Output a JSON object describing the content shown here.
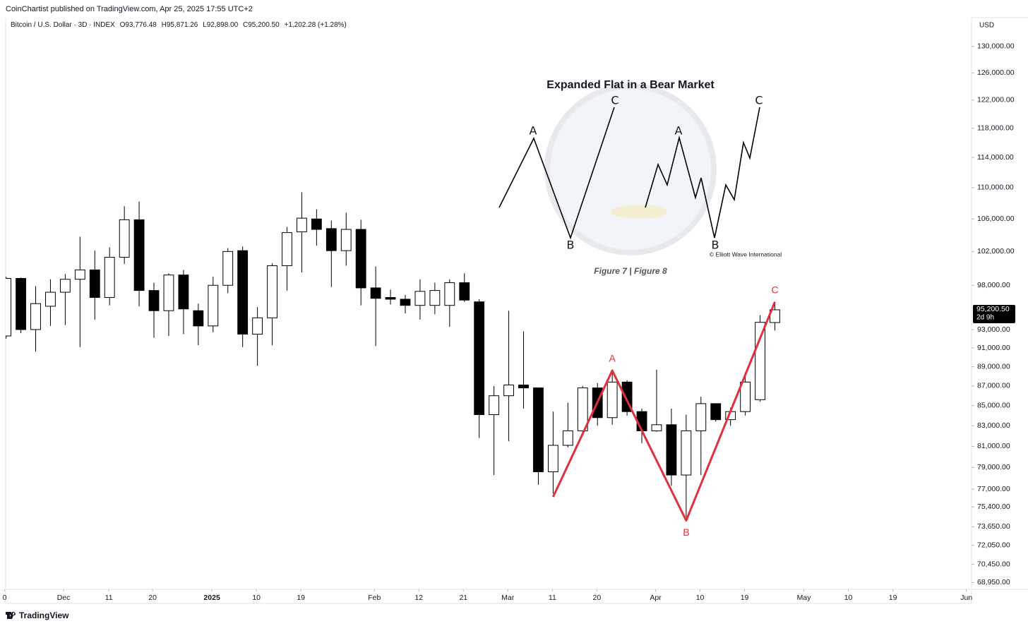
{
  "header": {
    "publisher": "CoinChartist published on TradingView.com, Apr 25, 2025 17:55 UTC+2",
    "symbol": "Bitcoin / U.S. Dollar · 3D · INDEX",
    "ohlc_labels": [
      "O93,776.48",
      "H95,871.26",
      "L92,898.00",
      "C95,200.50"
    ],
    "change_label": "+1,202.28 (+1.28%)",
    "currency": "USD"
  },
  "chart_data": {
    "type": "candlestick",
    "log_scale": true,
    "up_color": "#ffffff",
    "down_color": "#000000",
    "wick_color": "#000000",
    "open": [
      92300,
      98800,
      93000,
      95600,
      97200,
      98700,
      99800,
      96600,
      101300,
      105900,
      97400,
      95100,
      99200,
      95100,
      93400,
      98000,
      102100,
      92500,
      94300,
      100300,
      104400,
      106000,
      104800,
      102100,
      104700,
      97700,
      96600,
      96400,
      95700,
      95700,
      95700,
      98300,
      96100,
      84100,
      86000,
      87100,
      86800,
      78600,
      81100,
      82500,
      86800,
      83800,
      87400,
      84400,
      82500,
      83100,
      78300,
      82500,
      85200,
      83600,
      84400,
      85600,
      93776.48
    ],
    "high": [
      99000,
      98900,
      97900,
      98700,
      99300,
      103800,
      102100,
      102500,
      107600,
      108200,
      98300,
      99400,
      99800,
      95900,
      99000,
      102400,
      102600,
      95500,
      100600,
      105000,
      109400,
      107200,
      105800,
      106800,
      105900,
      100200,
      97500,
      96900,
      98700,
      98300,
      98700,
      99400,
      96400,
      87000,
      95100,
      92800,
      86800,
      84400,
      85300,
      87000,
      87300,
      88700,
      87600,
      84700,
      88700,
      84700,
      84100,
      85900,
      85200,
      84800,
      88400,
      94600,
      95871.26
    ],
    "low": [
      92000,
      92600,
      90600,
      93400,
      93500,
      91100,
      94100,
      95700,
      100500,
      95600,
      92100,
      92300,
      92500,
      91300,
      92700,
      97100,
      91100,
      89100,
      91300,
      97400,
      99500,
      102700,
      97800,
      100300,
      95700,
      91200,
      95800,
      94800,
      94100,
      94700,
      93300,
      96100,
      81800,
      78300,
      81500,
      84700,
      77400,
      76600,
      80900,
      82400,
      83000,
      83100,
      84000,
      81300,
      82400,
      77300,
      74500,
      78300,
      83400,
      83000,
      84000,
      85400,
      92898
    ],
    "close": [
      98800,
      93000,
      95900,
      97200,
      98700,
      99800,
      96600,
      101300,
      105900,
      97400,
      95100,
      99200,
      95300,
      93400,
      98000,
      102000,
      92500,
      94300,
      100300,
      104300,
      106100,
      104700,
      102100,
      104700,
      97700,
      96500,
      96400,
      95700,
      97300,
      97400,
      98300,
      96300,
      84100,
      86000,
      87100,
      86800,
      78600,
      81100,
      82500,
      86800,
      83800,
      87400,
      84400,
      82500,
      83100,
      78300,
      82500,
      85200,
      83600,
      84400,
      87400,
      93800,
      95200.5
    ],
    "last_price_label": "95,200.50",
    "countdown": "2d 9h",
    "xlim": [
      -0.03,
      65.3
    ],
    "xticks": [
      {
        "value": -0.1,
        "label": "0"
      },
      {
        "value": 3.89,
        "label": "Dec"
      },
      {
        "value": 6.95,
        "label": "11"
      },
      {
        "value": 9.91,
        "label": "20"
      },
      {
        "value": 13.92,
        "label": "2025"
      },
      {
        "value": 16.93,
        "label": "10"
      },
      {
        "value": 19.94,
        "label": "19"
      },
      {
        "value": 24.91,
        "label": "Feb"
      },
      {
        "value": 27.92,
        "label": "12"
      },
      {
        "value": 30.93,
        "label": "21"
      },
      {
        "value": 33.94,
        "label": "Mar"
      },
      {
        "value": 36.95,
        "label": "11"
      },
      {
        "value": 39.96,
        "label": "20"
      },
      {
        "value": 43.93,
        "label": "Apr"
      },
      {
        "value": 46.94,
        "label": "10"
      },
      {
        "value": 49.95,
        "label": "19"
      },
      {
        "value": 53.96,
        "label": "May"
      },
      {
        "value": 56.97,
        "label": "10"
      },
      {
        "value": 59.98,
        "label": "19"
      },
      {
        "value": 64.95,
        "label": "Jun"
      }
    ],
    "ylim": [
      68400,
      134500
    ],
    "yticks": [
      {
        "value": 130000,
        "label": "130,000.00"
      },
      {
        "value": 126000,
        "label": "126,000.00"
      },
      {
        "value": 122000,
        "label": "122,000.00"
      },
      {
        "value": 118000,
        "label": "118,000.00"
      },
      {
        "value": 114000,
        "label": "114,000.00"
      },
      {
        "value": 110000,
        "label": "110,000.00"
      },
      {
        "value": 106000,
        "label": "106,000.00"
      },
      {
        "value": 102000,
        "label": "102,000.00"
      },
      {
        "value": 98000,
        "label": "98,000.00"
      },
      {
        "value": 93000,
        "label": "93,000.00"
      },
      {
        "value": 91000,
        "label": "91,000.00"
      },
      {
        "value": 89000,
        "label": "89,000.00"
      },
      {
        "value": 87000,
        "label": "87,000.00"
      },
      {
        "value": 85000,
        "label": "85,000.00"
      },
      {
        "value": 83000,
        "label": "83,000.00"
      },
      {
        "value": 81000,
        "label": "81,000.00"
      },
      {
        "value": 79000,
        "label": "79,000.00"
      },
      {
        "value": 77000,
        "label": "77,000.00"
      },
      {
        "value": 75400,
        "label": "75,400.00"
      },
      {
        "value": 73650,
        "label": "73,650.00"
      },
      {
        "value": 72050,
        "label": "72,050.00"
      },
      {
        "value": 70450,
        "label": "70,450.00"
      },
      {
        "value": 68950,
        "label": "68,950.00"
      }
    ],
    "wave": {
      "color": "#e0303f",
      "x": [
        37,
        41,
        46,
        52
      ],
      "y": [
        76300,
        88600,
        74200,
        96100
      ],
      "labels": [
        null,
        "A",
        "B",
        "C"
      ]
    }
  },
  "inset": {
    "title": "Expanded Flat in a Bear Market",
    "labels": [
      "A",
      "B",
      "C",
      "A",
      "B",
      "C"
    ],
    "credit": "© Elliott Wave International",
    "caption": "Figure 7 | Figure 8"
  },
  "footer": {
    "brand": "TradingView"
  }
}
